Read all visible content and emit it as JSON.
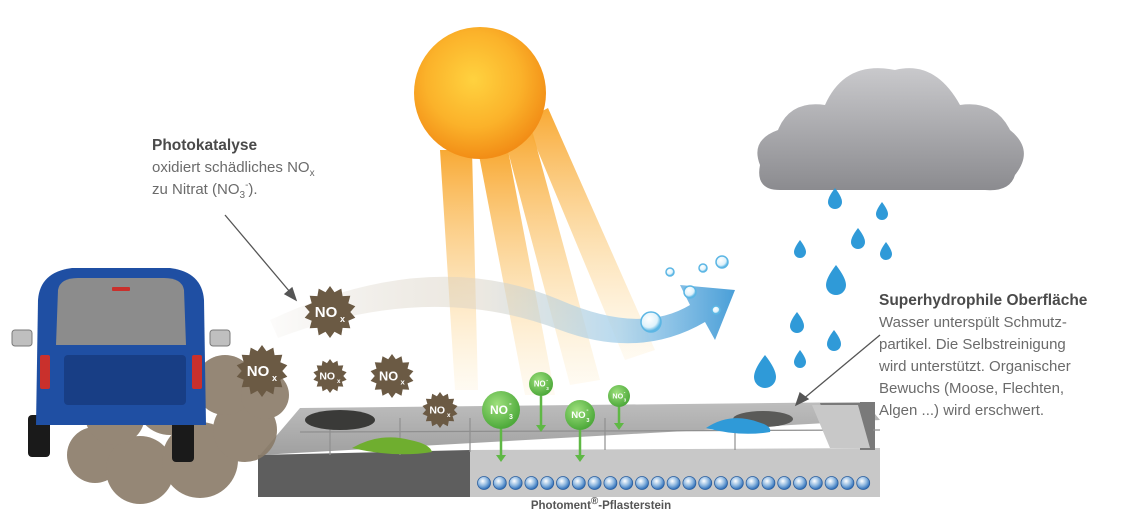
{
  "left_callout": {
    "heading": "Photokatalyse",
    "line1_a": "oxidiert schädliches NO",
    "line1_sub": "x",
    "line2_a": "zu Nitrat (NO",
    "line2_sub": "3",
    "line2_sup": "-",
    "line2_b": ")."
  },
  "right_callout": {
    "heading": "Superhydrophile Oberfläche",
    "lines": [
      "Wasser unterspült Schmutz-",
      "partikel. Die Selbstreinigung",
      "wird unterstützt. Organischer",
      "Bewuchs (Moose, Flechten,",
      "Algen ...) wird erschwert."
    ]
  },
  "caption": {
    "a": "Photoment",
    "sup": "®",
    "b": "-Pflasterstein"
  },
  "molecules": {
    "nox_main": "NO",
    "nox_sub": "x",
    "nitrate_main": "NO",
    "nitrate_sub": "3",
    "nitrate_sup": "-"
  },
  "colors": {
    "car_blue": "#1f4fa3",
    "smog": "#8a7b68",
    "nox_dark": "#6b5a44",
    "nitrate_green": "#5fb845",
    "stone": "#a3a3a3",
    "water": "#2f9ad8",
    "sun": "#f7a21b"
  }
}
